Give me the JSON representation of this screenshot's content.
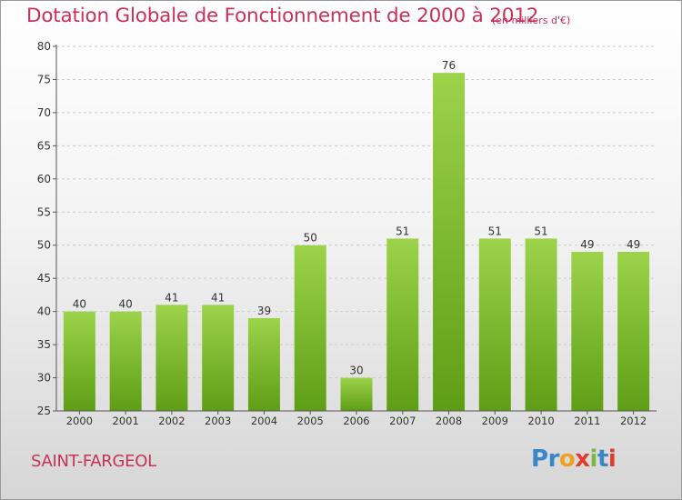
{
  "header": {
    "title": "Dotation Globale de Fonctionnement de 2000 à 2012",
    "unit": "(en milliers d'€)"
  },
  "footer": {
    "commune": "SAINT-FARGEOL",
    "logo_text": "Proxiti",
    "logo_letters": [
      {
        "ch": "P",
        "color": "#3a86c8"
      },
      {
        "ch": "r",
        "color": "#3a86c8"
      },
      {
        "ch": "o",
        "color": "#f0a020"
      },
      {
        "ch": "x",
        "color": "#e23b2e"
      },
      {
        "ch": "i",
        "color": "#7ab648"
      },
      {
        "ch": "t",
        "color": "#3a86c8"
      },
      {
        "ch": "i",
        "color": "#e23b2e"
      }
    ]
  },
  "colors": {
    "title": "#c8315a",
    "bar_light": "#9cd34a",
    "bar_dark": "#5e9e16",
    "axis": "#555555",
    "grid": "#cccccc",
    "text": "#333333"
  },
  "chart_data": {
    "type": "bar",
    "categories": [
      "2000",
      "2001",
      "2002",
      "2003",
      "2004",
      "2005",
      "2006",
      "2007",
      "2008",
      "2009",
      "2010",
      "2011",
      "2012"
    ],
    "values": [
      40,
      40,
      41,
      41,
      39,
      50,
      30,
      51,
      76,
      51,
      51,
      49,
      49
    ],
    "title": "Dotation Globale de Fonctionnement de 2000 à 2012",
    "subtitle": "(en milliers d'€)",
    "xlabel": "",
    "ylabel": "",
    "ylim": [
      25,
      80
    ],
    "yticks": [
      25,
      30,
      35,
      40,
      45,
      50,
      55,
      60,
      65,
      70,
      75,
      80
    ],
    "grid": true,
    "data_labels": true
  }
}
